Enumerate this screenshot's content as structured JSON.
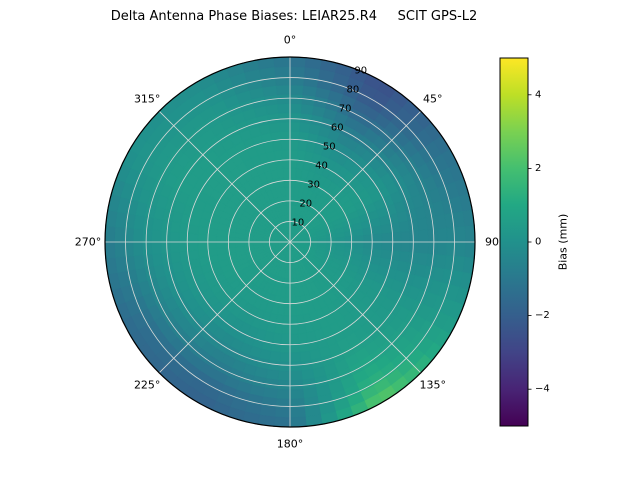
{
  "title": "Delta Antenna Phase Biases: LEIAR25.R4     SCIT GPS-L2",
  "chart_data": {
    "type": "heatmap",
    "projection": "polar",
    "title": "Delta Antenna Phase Biases: LEIAR25.R4     SCIT GPS-L2",
    "grid_on": true,
    "legend_position": "right-colorbar",
    "angular_ticks": [
      {
        "deg": 0,
        "label": "0°"
      },
      {
        "deg": 45,
        "label": "45°"
      },
      {
        "deg": 90,
        "label": "90"
      },
      {
        "deg": 135,
        "label": "135°"
      },
      {
        "deg": 180,
        "label": "180°"
      },
      {
        "deg": 225,
        "label": "225°"
      },
      {
        "deg": 270,
        "label": "270°"
      },
      {
        "deg": 315,
        "label": "315°"
      }
    ],
    "radial_ticks": [
      {
        "ring": 10,
        "label": "10"
      },
      {
        "ring": 20,
        "label": "20"
      },
      {
        "ring": 30,
        "label": "30"
      },
      {
        "ring": 40,
        "label": "40"
      },
      {
        "ring": 50,
        "label": "50"
      },
      {
        "ring": 60,
        "label": "60"
      },
      {
        "ring": 70,
        "label": "70"
      },
      {
        "ring": 80,
        "label": "80"
      },
      {
        "ring": 90,
        "label": "90"
      }
    ],
    "radial_label_azimuth_deg": 22.5,
    "colorbar": {
      "label": "Bias (mm)",
      "range": [
        -5,
        5
      ],
      "ticks": [
        {
          "v": 4,
          "label": "4"
        },
        {
          "v": 2,
          "label": "2"
        },
        {
          "v": 0,
          "label": "0"
        },
        {
          "v": -2,
          "label": "−2"
        },
        {
          "v": -4,
          "label": "−4"
        }
      ],
      "colormap": "viridis",
      "stops": [
        [
          0.0,
          "#440154"
        ],
        [
          0.1,
          "#482475"
        ],
        [
          0.2,
          "#414487"
        ],
        [
          0.3,
          "#355f8d"
        ],
        [
          0.4,
          "#2a788e"
        ],
        [
          0.5,
          "#21918c"
        ],
        [
          0.6,
          "#22a884"
        ],
        [
          0.7,
          "#44bf70"
        ],
        [
          0.8,
          "#7ad151"
        ],
        [
          0.9,
          "#bddf26"
        ],
        [
          1.0,
          "#fde725"
        ]
      ]
    },
    "grid": {
      "azimuth_deg": [
        0,
        30,
        60,
        90,
        120,
        150,
        180,
        210,
        240,
        270,
        300,
        330,
        360
      ],
      "elevation_rings": [
        0,
        10,
        20,
        30,
        40,
        50,
        60,
        70,
        80,
        90
      ],
      "bias_mm": [
        [
          0.5,
          0.5,
          0.5,
          0.5,
          0.5,
          0.4,
          0.2,
          -0.2,
          -0.8,
          -1.2
        ],
        [
          0.5,
          0.5,
          0.5,
          0.4,
          0.2,
          -0.2,
          -0.8,
          -1.6,
          -2.3,
          -2.6
        ],
        [
          0.5,
          0.5,
          0.5,
          0.5,
          0.4,
          0.2,
          -0.2,
          -0.6,
          -1.1,
          -1.3
        ],
        [
          0.5,
          0.4,
          0.2,
          0.0,
          -0.3,
          -0.4,
          -0.5,
          -0.5,
          -0.4,
          -0.6
        ],
        [
          0.5,
          0.5,
          0.4,
          0.4,
          0.3,
          0.3,
          0.3,
          0.4,
          0.5,
          0.6
        ],
        [
          0.5,
          0.5,
          0.5,
          0.5,
          0.5,
          0.5,
          0.6,
          0.9,
          1.4,
          2.6
        ],
        [
          0.5,
          0.5,
          0.5,
          0.5,
          0.4,
          0.3,
          0.0,
          -0.4,
          -0.9,
          -1.3
        ],
        [
          0.5,
          0.5,
          0.5,
          0.4,
          0.3,
          0.0,
          -0.4,
          -0.9,
          -1.6,
          -1.9
        ],
        [
          0.5,
          0.5,
          0.5,
          0.5,
          0.4,
          0.2,
          -0.1,
          -0.6,
          -1.3,
          -1.6
        ],
        [
          0.5,
          0.5,
          0.5,
          0.5,
          0.5,
          0.4,
          0.2,
          0.0,
          -0.4,
          -0.9
        ],
        [
          0.5,
          0.5,
          0.5,
          0.5,
          0.5,
          0.5,
          0.5,
          0.4,
          0.2,
          0.0
        ],
        [
          0.5,
          0.5,
          0.5,
          0.5,
          0.5,
          0.5,
          0.4,
          0.3,
          0.1,
          -0.2
        ],
        [
          0.5,
          0.5,
          0.5,
          0.5,
          0.5,
          0.4,
          0.2,
          -0.2,
          -0.8,
          -1.2
        ]
      ]
    },
    "style": {
      "grid_color": "#d9d9d9",
      "outline_color": "#000000",
      "background": "#ffffff"
    }
  }
}
